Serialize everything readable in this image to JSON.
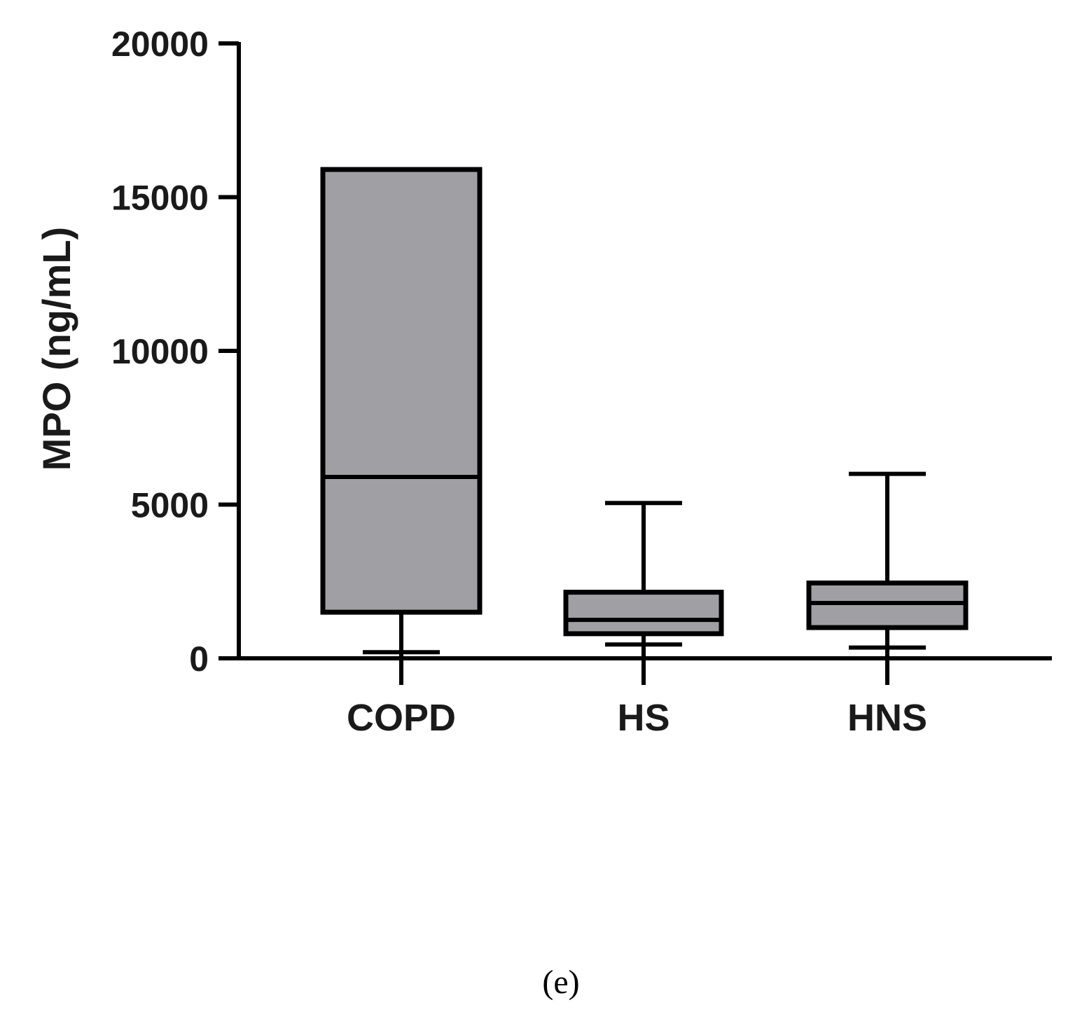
{
  "chart_data": {
    "type": "box",
    "ylabel": "MPO (ng/mL)",
    "xlabel": "",
    "ylim": [
      0,
      20000
    ],
    "yticks": [
      0,
      5000,
      10000,
      15000,
      20000
    ],
    "ytick_labels": [
      "0",
      "5000",
      "10000",
      "15000",
      "20000"
    ],
    "categories": [
      "COPD",
      "HS",
      "HNS"
    ],
    "boxes": [
      {
        "category": "COPD",
        "whisker_low": 200,
        "q1": 1500,
        "median": 5900,
        "q3": 15900,
        "whisker_high": 15900
      },
      {
        "category": "HS",
        "whisker_low": 450,
        "q1": 800,
        "median": 1250,
        "q3": 2150,
        "whisker_high": 5050
      },
      {
        "category": "HNS",
        "whisker_low": 350,
        "q1": 1000,
        "median": 1800,
        "q3": 2450,
        "whisker_high": 6000
      }
    ],
    "box_fill": "#a0a0a4",
    "line_color": "#000000",
    "grid": false
  },
  "caption": "(e)"
}
